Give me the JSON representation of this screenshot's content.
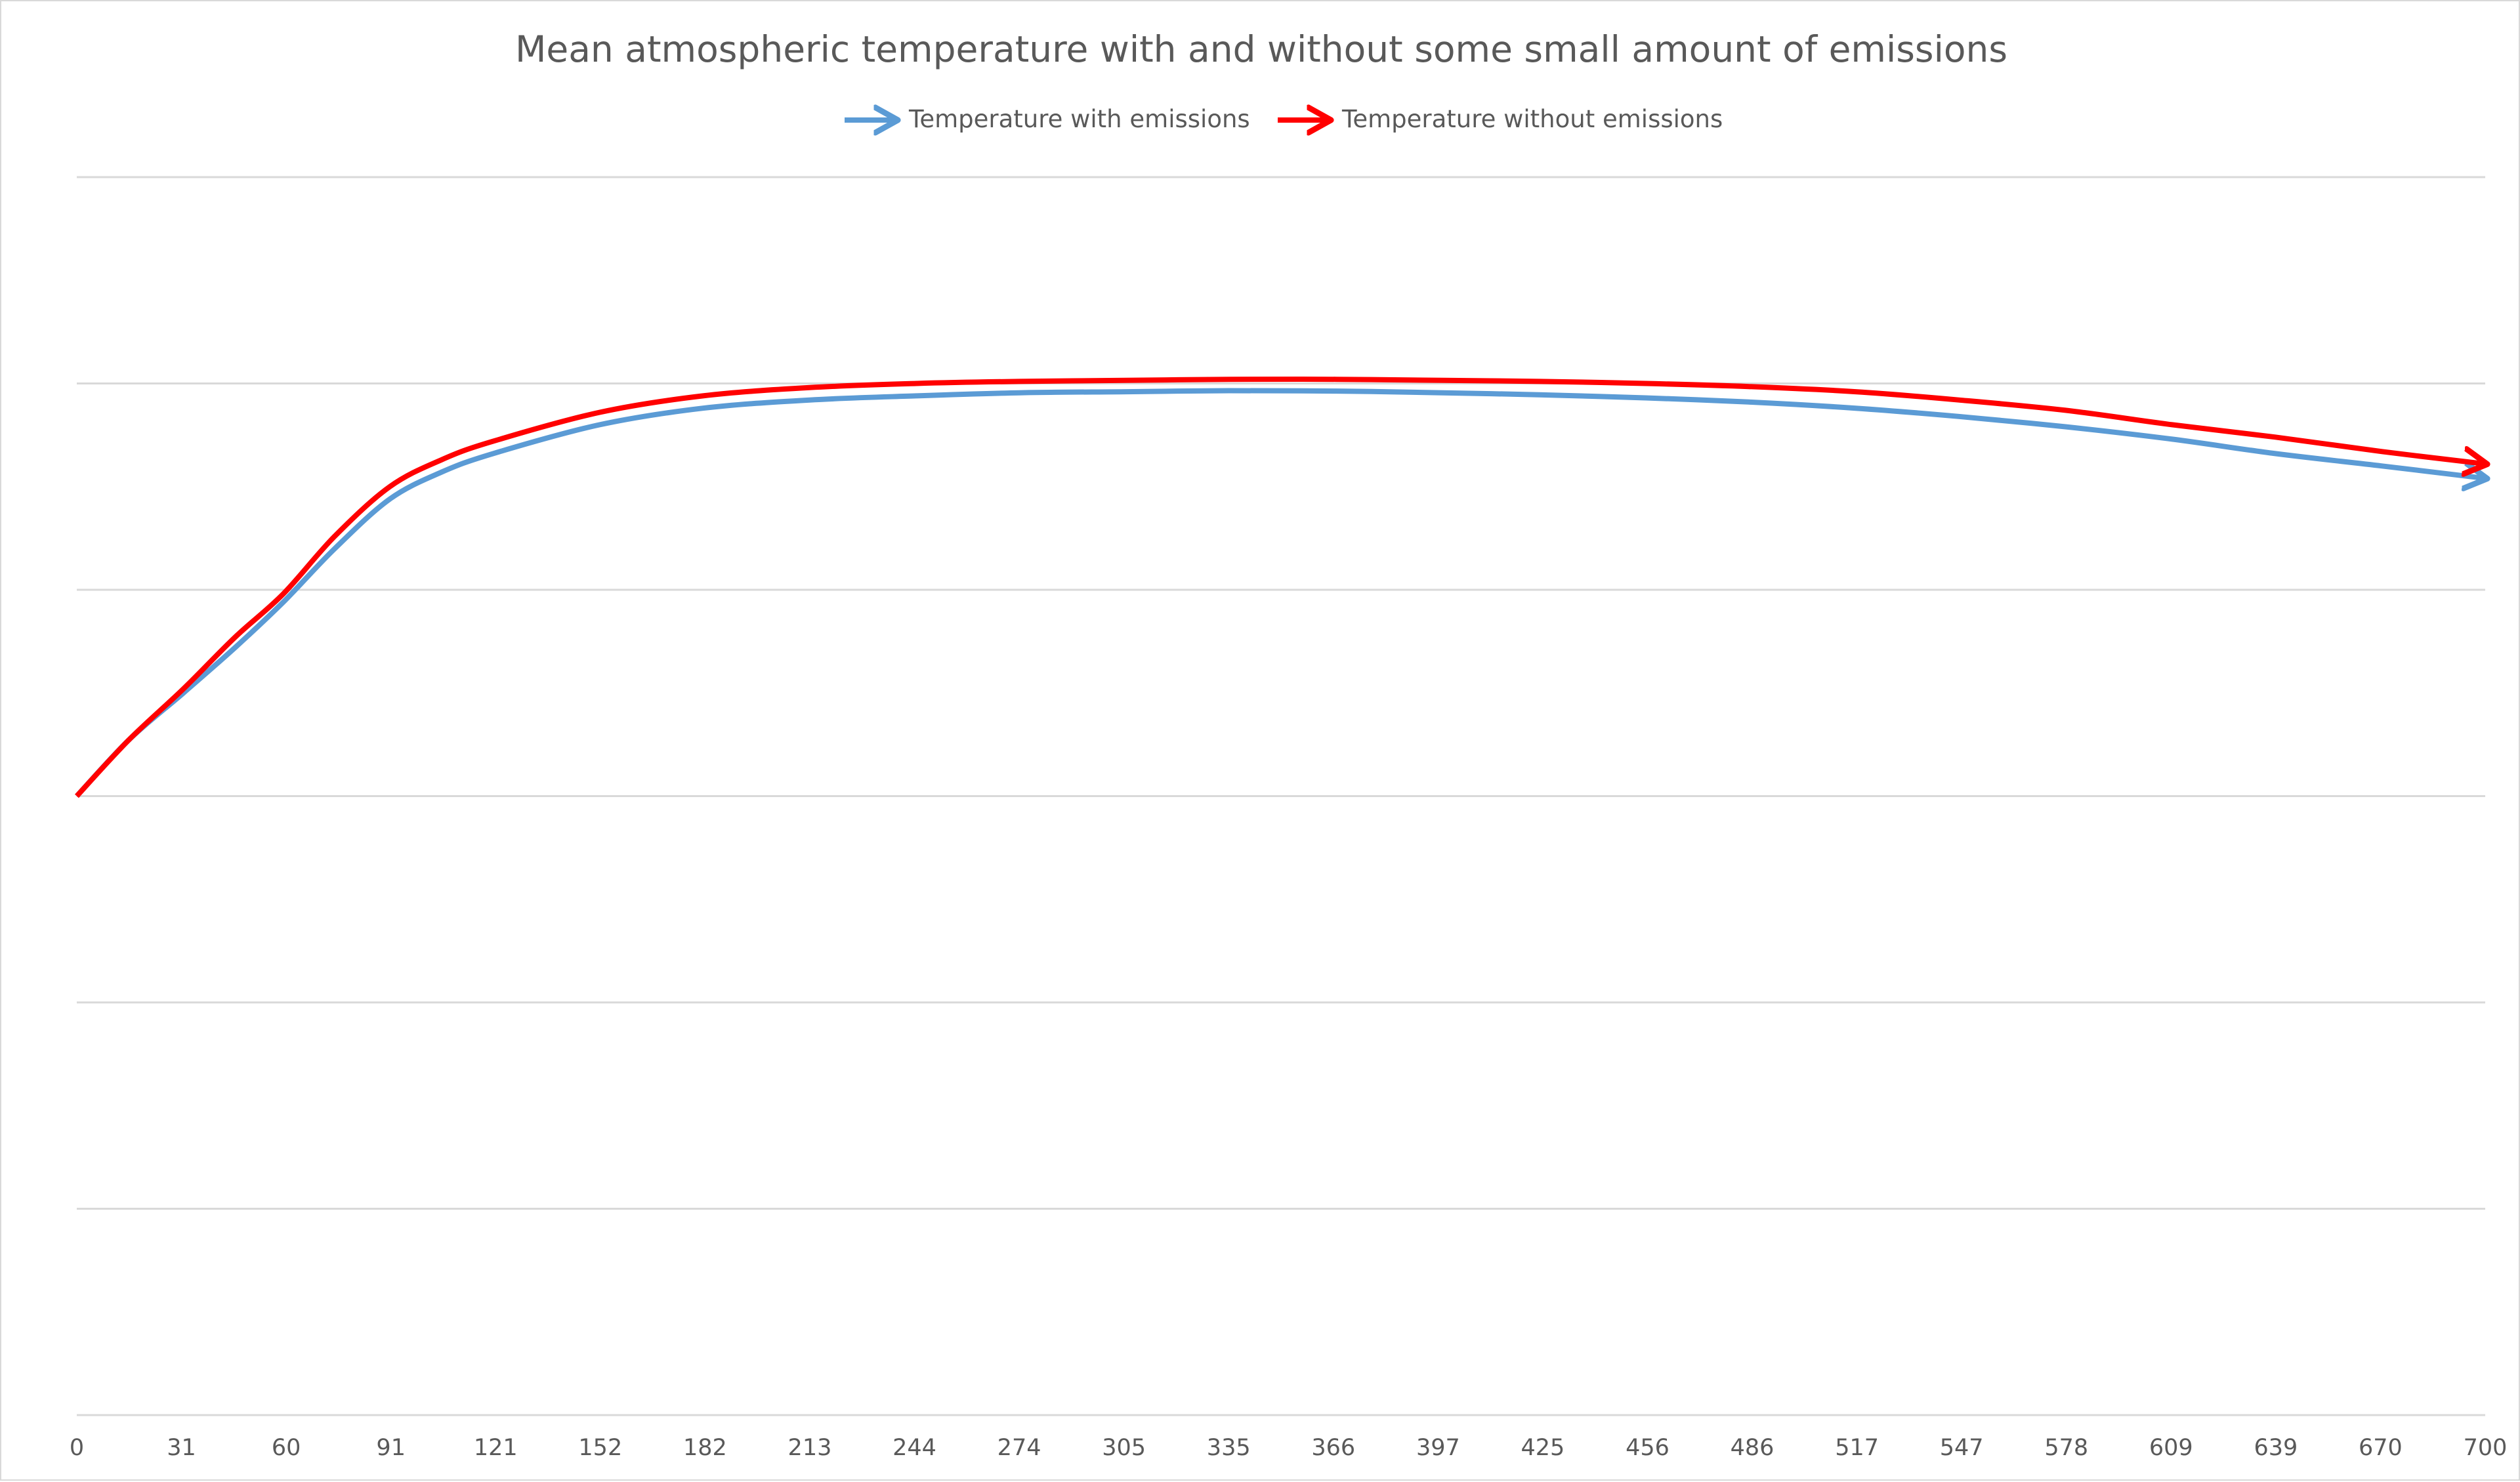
{
  "chart_data": {
    "type": "line",
    "title": "Mean atmospheric temperature with and without some small amount of emissions",
    "xlabel": "",
    "ylabel": "",
    "grid": true,
    "legend_position": "top-center",
    "x_ticks": [
      "0",
      "31",
      "60",
      "91",
      "121",
      "152",
      "182",
      "213",
      "244",
      "274",
      "305",
      "335",
      "366",
      "397",
      "425",
      "456",
      "486",
      "517",
      "547",
      "578",
      "609",
      "639",
      "670",
      "700"
    ],
    "x_range": [
      0,
      700
    ],
    "y_range": [
      0,
      6
    ],
    "gridline_count": 7,
    "series": [
      {
        "name": "Temperature with emissions",
        "color": "#5b9bd5",
        "x": [
          0,
          15,
          31,
          46,
          60,
          75,
          91,
          106,
          121,
          152,
          182,
          213,
          244,
          274,
          305,
          335,
          366,
          397,
          425,
          456,
          486,
          517,
          547,
          578,
          609,
          639,
          670,
          700
        ],
        "y": [
          3.0,
          3.27,
          3.5,
          3.72,
          3.94,
          4.2,
          4.44,
          4.57,
          4.66,
          4.8,
          4.88,
          4.92,
          4.94,
          4.955,
          4.96,
          4.965,
          4.963,
          4.955,
          4.945,
          4.93,
          4.91,
          4.88,
          4.84,
          4.79,
          4.73,
          4.66,
          4.6,
          4.54
        ]
      },
      {
        "name": "Temperature without emissions",
        "color": "#ff0000",
        "x": [
          0,
          15,
          31,
          46,
          60,
          75,
          91,
          106,
          121,
          152,
          182,
          213,
          244,
          274,
          305,
          335,
          366,
          397,
          425,
          456,
          486,
          517,
          547,
          578,
          609,
          639,
          670,
          700
        ],
        "y": [
          3.0,
          3.27,
          3.52,
          3.77,
          3.98,
          4.26,
          4.5,
          4.63,
          4.72,
          4.86,
          4.94,
          4.98,
          5.0,
          5.01,
          5.015,
          5.02,
          5.02,
          5.015,
          5.01,
          5.0,
          4.985,
          4.96,
          4.92,
          4.87,
          4.8,
          4.74,
          4.67,
          4.61
        ]
      }
    ]
  }
}
